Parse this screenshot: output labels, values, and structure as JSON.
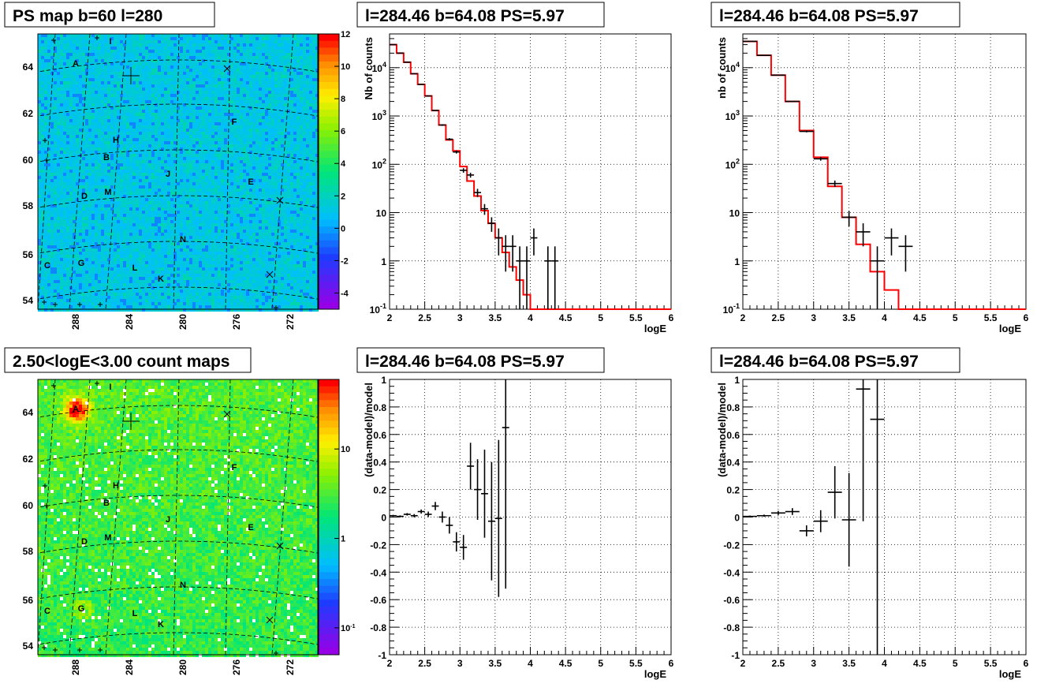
{
  "colors": {
    "model": "#ff0000",
    "data": "#000000",
    "grid": "#000000"
  },
  "chart_data": [
    {
      "type": "heatmap",
      "title": "PS map b=60 l=280",
      "x_ticks": [
        "288",
        "284",
        "280",
        "276",
        "272"
      ],
      "y_ticks": [
        "54",
        "56",
        "58",
        "60",
        "62",
        "64"
      ],
      "colorbar_ticks": [
        "12",
        "10",
        "8",
        "6",
        "4",
        "2",
        "0",
        "-2",
        "-4"
      ],
      "colorbar_range": [
        -5,
        12
      ],
      "sources": [
        "A",
        "B",
        "C",
        "D",
        "E",
        "F",
        "G",
        "H",
        "I",
        "J",
        "K",
        "L",
        "M",
        "N"
      ],
      "background_level": 0,
      "grid": true
    },
    {
      "type": "line",
      "title": "l=284.46 b=64.08 PS=5.97",
      "xlabel": "logE",
      "ylabel": "Nb of counts",
      "xlim": [
        2,
        6
      ],
      "ylim": [
        0.1,
        50000
      ],
      "yscale": "log",
      "x_ticks": [
        "2",
        "2.5",
        "3",
        "3.5",
        "4",
        "4.5",
        "5",
        "5.5",
        "6"
      ],
      "y_ticks": [
        "10^-1",
        "1",
        "10",
        "10^2",
        "10^3",
        "10^4"
      ],
      "grid": true,
      "series": [
        {
          "role": "model",
          "style": "step",
          "bin_width": 0.1,
          "x": [
            2.0,
            2.1,
            2.2,
            2.3,
            2.4,
            2.5,
            2.6,
            2.7,
            2.8,
            2.9,
            3.0,
            3.1,
            3.2,
            3.3,
            3.4,
            3.5,
            3.6,
            3.7,
            3.8,
            3.9,
            4.0,
            4.1,
            4.2,
            4.3,
            4.4,
            4.5,
            4.6,
            4.7,
            4.8,
            4.9,
            5.0,
            5.1,
            5.2,
            5.3,
            5.4,
            5.5,
            5.6,
            5.7,
            5.8,
            5.9
          ],
          "y": [
            30000,
            20000,
            13000,
            7500,
            4500,
            2600,
            1300,
            650,
            320,
            190,
            90,
            45,
            22,
            11,
            6,
            3,
            1.5,
            0.75,
            0.4,
            0.2,
            0.1,
            0.1,
            0.1,
            0.1,
            0.1,
            0.1,
            0.1,
            0.1,
            0.1,
            0.1,
            0.1,
            0.1,
            0.1,
            0.1,
            0.1,
            0.1,
            0.1,
            0.1,
            0.1,
            0.1
          ]
        },
        {
          "role": "data",
          "style": "points",
          "x": [
            2.05,
            2.15,
            2.25,
            2.35,
            2.45,
            2.55,
            2.65,
            2.75,
            2.85,
            2.95,
            3.05,
            3.15,
            3.25,
            3.35,
            3.45,
            3.55,
            3.65,
            3.75,
            3.85,
            3.95,
            4.05,
            4.25,
            4.35
          ],
          "y": [
            30000,
            20000,
            13000,
            7500,
            4500,
            2600,
            1300,
            650,
            330,
            180,
            75,
            60,
            26,
            12,
            6,
            3,
            2,
            2,
            1,
            1,
            3,
            1,
            1
          ],
          "yerr_lo": [
            170,
            140,
            110,
            85,
            65,
            50,
            35,
            25,
            18,
            13,
            8,
            7,
            5,
            3,
            2,
            1.7,
            1.4,
            1.4,
            1,
            0.95,
            1.7,
            0.95,
            0.95
          ],
          "yerr_hi": [
            170,
            140,
            110,
            85,
            65,
            50,
            35,
            25,
            18,
            13,
            8,
            7,
            5,
            3,
            2,
            1.7,
            1.4,
            1.4,
            1,
            1,
            1.7,
            1,
            1
          ]
        }
      ]
    },
    {
      "type": "line",
      "title": "l=284.46 b=64.08 PS=5.97",
      "xlabel": "logE",
      "ylabel": "nb of counts",
      "xlim": [
        2,
        6
      ],
      "ylim": [
        0.1,
        50000
      ],
      "yscale": "log",
      "x_ticks": [
        "2",
        "2.5",
        "3",
        "3.5",
        "4",
        "4.5",
        "5",
        "5.5",
        "6"
      ],
      "y_ticks": [
        "10^-1",
        "1",
        "10",
        "10^2",
        "10^3",
        "10^4"
      ],
      "grid": true,
      "series": [
        {
          "role": "model",
          "style": "step",
          "bin_width": 0.2,
          "x": [
            2.0,
            2.2,
            2.4,
            2.6,
            2.8,
            3.0,
            3.2,
            3.4,
            3.6,
            3.8,
            4.0,
            4.2,
            4.4,
            4.6,
            4.8,
            5.0,
            5.2,
            5.4,
            5.6,
            5.8
          ],
          "y": [
            35000,
            18000,
            7000,
            2000,
            500,
            140,
            35,
            8,
            2.2,
            0.6,
            0.25,
            0.1,
            0.1,
            0.1,
            0.1,
            0.1,
            0.1,
            0.1,
            0.1,
            0.1
          ]
        },
        {
          "role": "data",
          "style": "points",
          "x": [
            2.1,
            2.3,
            2.5,
            2.7,
            2.9,
            3.1,
            3.3,
            3.5,
            3.7,
            3.9,
            4.1,
            4.3
          ],
          "y": [
            35000,
            18000,
            7000,
            2000,
            480,
            130,
            40,
            8,
            4,
            1,
            3,
            2
          ],
          "yerr_lo": [
            190,
            135,
            85,
            45,
            22,
            11,
            6,
            2.8,
            2,
            0.95,
            1.7,
            1.4
          ],
          "yerr_hi": [
            190,
            135,
            85,
            45,
            22,
            11,
            6,
            2.8,
            2,
            1,
            1.7,
            1.4
          ]
        }
      ]
    },
    {
      "type": "heatmap",
      "title": "2.50<logE<3.00 count maps",
      "x_ticks": [
        "288",
        "284",
        "280",
        "276",
        "272"
      ],
      "y_ticks": [
        "54",
        "56",
        "58",
        "60",
        "62",
        "64"
      ],
      "colorbar_ticks": [
        "10",
        "1",
        "10^-1"
      ],
      "colorbar_scale": "log",
      "colorbar_range": [
        0.05,
        60
      ],
      "sources": [
        "A",
        "B",
        "C",
        "D",
        "E",
        "F",
        "G",
        "H",
        "I",
        "J",
        "K",
        "L",
        "M",
        "N"
      ],
      "bright_source": "A",
      "grid": true
    },
    {
      "type": "scatter",
      "title": "l=284.46 b=64.08 PS=5.97",
      "xlabel": "logE",
      "ylabel": "(data-model)/model",
      "xlim": [
        2,
        6
      ],
      "ylim": [
        -1,
        1
      ],
      "x_ticks": [
        "2",
        "2.5",
        "3",
        "3.5",
        "4",
        "4.5",
        "5",
        "5.5",
        "6"
      ],
      "y_ticks": [
        "-1",
        "-0.8",
        "-0.6",
        "-0.4",
        "-0.2",
        "0",
        "0.2",
        "0.4",
        "0.6",
        "0.8",
        "1"
      ],
      "grid": true,
      "series": [
        {
          "role": "data",
          "x": [
            2.05,
            2.15,
            2.25,
            2.35,
            2.45,
            2.55,
            2.65,
            2.75,
            2.85,
            2.95,
            3.05,
            3.15,
            3.25,
            3.35,
            3.45,
            3.55,
            3.65
          ],
          "y": [
            0.01,
            0.005,
            0.02,
            0.01,
            0.04,
            0.02,
            0.08,
            0.0,
            -0.06,
            -0.18,
            -0.22,
            0.37,
            0.2,
            0.17,
            -0.03,
            -0.01,
            0.65
          ],
          "yerr": [
            0.006,
            0.007,
            0.009,
            0.012,
            0.015,
            0.02,
            0.03,
            0.04,
            0.06,
            0.07,
            0.09,
            0.17,
            0.22,
            0.32,
            0.43,
            0.57,
            1.17
          ]
        }
      ]
    },
    {
      "type": "scatter",
      "title": "l=284.46 b=64.08 PS=5.97",
      "xlabel": "logE",
      "ylabel": "(data-model)/model",
      "xlim": [
        2,
        6
      ],
      "ylim": [
        -1,
        1
      ],
      "x_ticks": [
        "2",
        "2.5",
        "3",
        "3.5",
        "4",
        "4.5",
        "5",
        "5.5",
        "6"
      ],
      "y_ticks": [
        "-1",
        "-0.8",
        "-0.6",
        "-0.4",
        "-0.2",
        "0",
        "0.2",
        "0.4",
        "0.6",
        "0.8",
        "1"
      ],
      "grid": true,
      "series": [
        {
          "role": "data",
          "x": [
            2.1,
            2.3,
            2.5,
            2.7,
            2.9,
            3.1,
            3.3,
            3.5,
            3.7,
            3.9
          ],
          "y": [
            0.005,
            0.01,
            0.03,
            0.04,
            -0.1,
            -0.03,
            0.18,
            -0.02,
            0.93,
            0.71
          ],
          "yerr": [
            0.006,
            0.008,
            0.015,
            0.025,
            0.04,
            0.08,
            0.19,
            0.34,
            0.96,
            1.72
          ]
        }
      ]
    }
  ]
}
